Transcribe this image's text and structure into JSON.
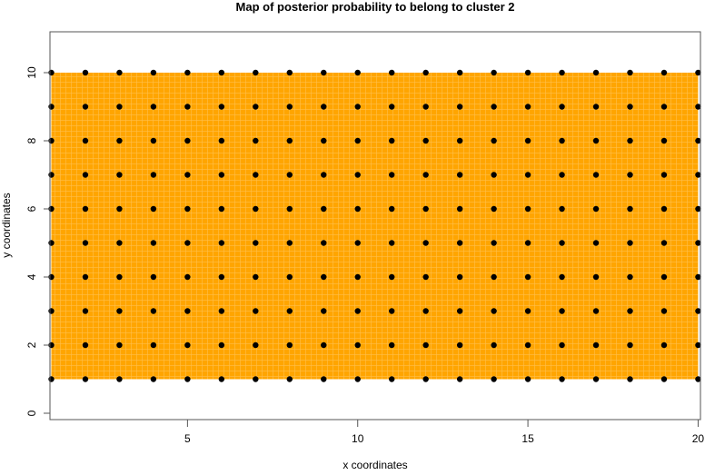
{
  "chart_data": {
    "type": "heatmap",
    "title": "Map of posterior probability to belong to cluster  2",
    "xlabel": "x coordinates",
    "ylabel": "y coordinates",
    "xlim": [
      1,
      20
    ],
    "ylim": [
      -0.2,
      11.2
    ],
    "x_ticks": [
      5,
      10,
      15,
      20
    ],
    "y_ticks": [
      0,
      2,
      4,
      6,
      8,
      10
    ],
    "grid": false,
    "fill_region": {
      "x": [
        1,
        20
      ],
      "y": [
        1,
        10
      ],
      "color": "#FFA500"
    },
    "points": {
      "x": [
        1,
        2,
        3,
        4,
        5,
        6,
        7,
        8,
        9,
        10,
        11,
        12,
        13,
        14,
        15,
        16,
        17,
        18,
        19,
        20
      ],
      "y": [
        1,
        2,
        3,
        4,
        5,
        6,
        7,
        8,
        9,
        10
      ],
      "color": "#000000"
    }
  }
}
